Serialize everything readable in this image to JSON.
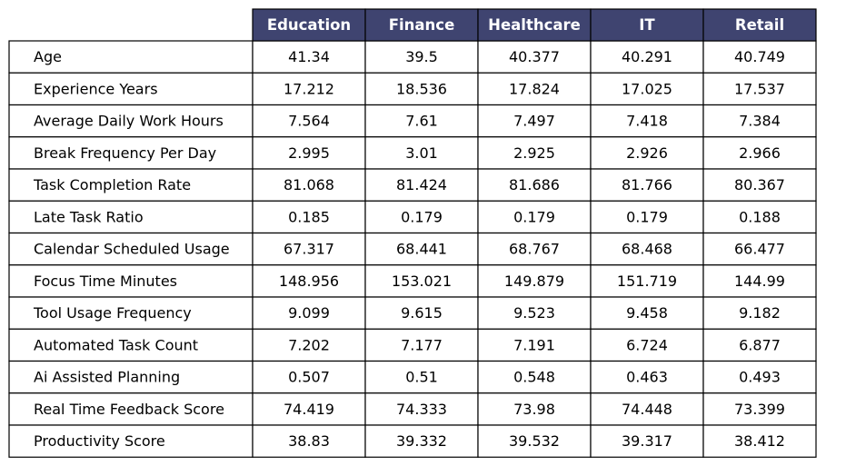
{
  "chart_data": {
    "type": "table",
    "colors": {
      "header_background": "#3f4470",
      "header_text": "#ffffff",
      "cell_background": "#ffffff",
      "border": "#000000",
      "text": "#000000"
    },
    "columns": [
      "Education",
      "Finance",
      "Healthcare",
      "IT",
      "Retail"
    ],
    "rows": [
      {
        "label": "Age",
        "values": [
          "41.34",
          "39.5",
          "40.377",
          "40.291",
          "40.749"
        ]
      },
      {
        "label": "Experience Years",
        "values": [
          "17.212",
          "18.536",
          "17.824",
          "17.025",
          "17.537"
        ]
      },
      {
        "label": "Average Daily Work Hours",
        "values": [
          "7.564",
          "7.61",
          "7.497",
          "7.418",
          "7.384"
        ]
      },
      {
        "label": "Break Frequency Per Day",
        "values": [
          "2.995",
          "3.01",
          "2.925",
          "2.926",
          "2.966"
        ]
      },
      {
        "label": "Task Completion Rate",
        "values": [
          "81.068",
          "81.424",
          "81.686",
          "81.766",
          "80.367"
        ]
      },
      {
        "label": "Late Task Ratio",
        "values": [
          "0.185",
          "0.179",
          "0.179",
          "0.179",
          "0.188"
        ]
      },
      {
        "label": "Calendar Scheduled Usage",
        "values": [
          "67.317",
          "68.441",
          "68.767",
          "68.468",
          "66.477"
        ]
      },
      {
        "label": "Focus Time Minutes",
        "values": [
          "148.956",
          "153.021",
          "149.879",
          "151.719",
          "144.99"
        ]
      },
      {
        "label": "Tool Usage Frequency",
        "values": [
          "9.099",
          "9.615",
          "9.523",
          "9.458",
          "9.182"
        ]
      },
      {
        "label": "Automated Task Count",
        "values": [
          "7.202",
          "7.177",
          "7.191",
          "6.724",
          "6.877"
        ]
      },
      {
        "label": "Ai Assisted Planning",
        "values": [
          "0.507",
          "0.51",
          "0.548",
          "0.463",
          "0.493"
        ]
      },
      {
        "label": "Real Time Feedback Score",
        "values": [
          "74.419",
          "74.333",
          "73.98",
          "74.448",
          "73.399"
        ]
      },
      {
        "label": "Productivity Score",
        "values": [
          "38.83",
          "39.332",
          "39.532",
          "39.317",
          "38.412"
        ]
      }
    ]
  }
}
